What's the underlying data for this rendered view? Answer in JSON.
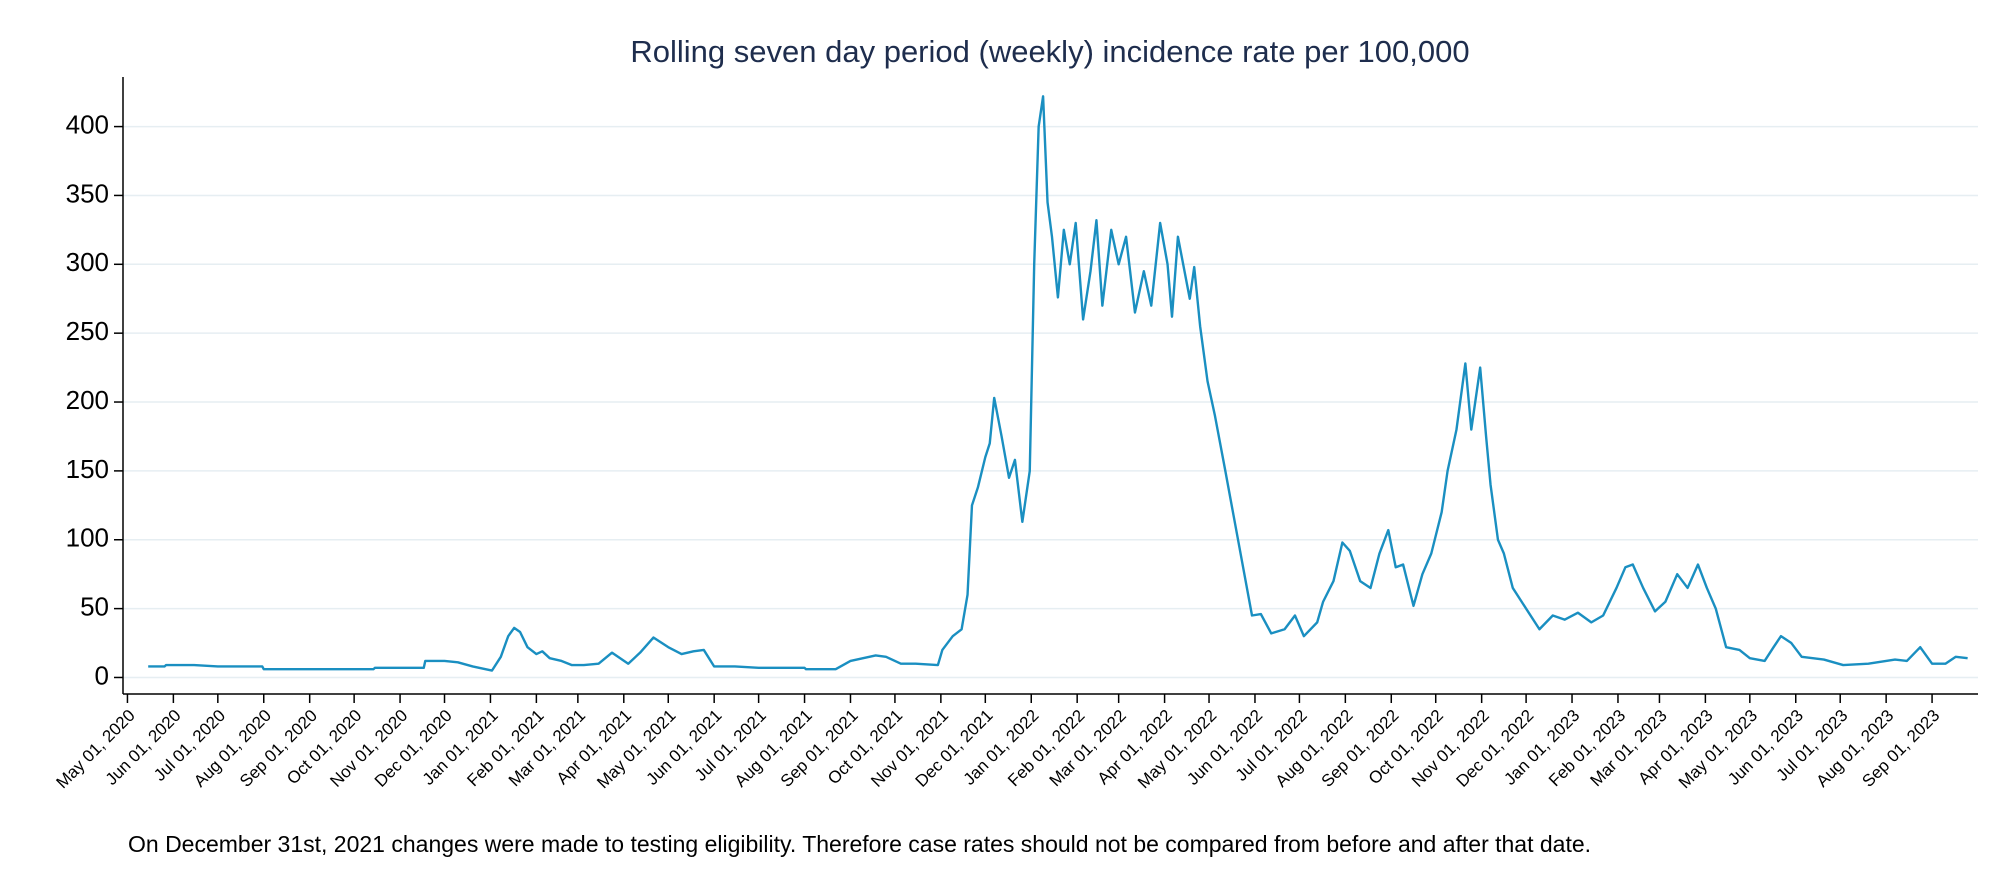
{
  "chart_data": {
    "type": "line",
    "title": "Rolling seven day period (weekly) incidence rate per 100,000",
    "annotation": "On December 31st, 2021 changes were made to testing eligibility. Therefore case rates should not be compared from before and after that date.",
    "color": "#1a8fc1",
    "grid": true,
    "xlim": [
      "2020-04-28",
      "2023-10-02"
    ],
    "ylim": [
      -12,
      436
    ],
    "yticks": [
      0,
      50,
      100,
      150,
      200,
      250,
      300,
      350,
      400
    ],
    "xticks": [
      {
        "value": "2020-05-01",
        "label": "May 01, 2020"
      },
      {
        "value": "2020-06-01",
        "label": "Jun 01, 2020"
      },
      {
        "value": "2020-07-01",
        "label": "Jul 01, 2020"
      },
      {
        "value": "2020-08-01",
        "label": "Aug 01, 2020"
      },
      {
        "value": "2020-09-01",
        "label": "Sep 01, 2020"
      },
      {
        "value": "2020-10-01",
        "label": "Oct 01, 2020"
      },
      {
        "value": "2020-11-01",
        "label": "Nov 01, 2020"
      },
      {
        "value": "2020-12-01",
        "label": "Dec 01, 2020"
      },
      {
        "value": "2021-01-01",
        "label": "Jan 01, 2021"
      },
      {
        "value": "2021-02-01",
        "label": "Feb 01, 2021"
      },
      {
        "value": "2021-03-01",
        "label": "Mar 01, 2021"
      },
      {
        "value": "2021-04-01",
        "label": "Apr 01, 2021"
      },
      {
        "value": "2021-05-01",
        "label": "May 01, 2021"
      },
      {
        "value": "2021-06-01",
        "label": "Jun 01, 2021"
      },
      {
        "value": "2021-07-01",
        "label": "Jul 01, 2021"
      },
      {
        "value": "2021-08-01",
        "label": "Aug 01, 2021"
      },
      {
        "value": "2021-09-01",
        "label": "Sep 01, 2021"
      },
      {
        "value": "2021-10-01",
        "label": "Oct 01, 2021"
      },
      {
        "value": "2021-11-01",
        "label": "Nov 01, 2021"
      },
      {
        "value": "2021-12-01",
        "label": "Dec 01, 2021"
      },
      {
        "value": "2022-01-01",
        "label": "Jan 01, 2022"
      },
      {
        "value": "2022-02-01",
        "label": "Feb 01, 2022"
      },
      {
        "value": "2022-03-01",
        "label": "Mar 01, 2022"
      },
      {
        "value": "2022-04-01",
        "label": "Apr 01, 2022"
      },
      {
        "value": "2022-05-01",
        "label": "May 01, 2022"
      },
      {
        "value": "2022-06-01",
        "label": "Jun 01, 2022"
      },
      {
        "value": "2022-07-01",
        "label": "Jul 01, 2022"
      },
      {
        "value": "2022-08-01",
        "label": "Aug 01, 2022"
      },
      {
        "value": "2022-09-01",
        "label": "Sep 01, 2022"
      },
      {
        "value": "2022-10-01",
        "label": "Oct 01, 2022"
      },
      {
        "value": "2022-11-01",
        "label": "Nov 01, 2022"
      },
      {
        "value": "2022-12-01",
        "label": "Dec 01, 2022"
      },
      {
        "value": "2023-01-01",
        "label": "Jan 01, 2023"
      },
      {
        "value": "2023-02-01",
        "label": "Feb 01, 2023"
      },
      {
        "value": "2023-03-01",
        "label": "Mar 01, 2023"
      },
      {
        "value": "2023-04-01",
        "label": "Apr 01, 2023"
      },
      {
        "value": "2023-05-01",
        "label": "May 01, 2023"
      },
      {
        "value": "2023-06-01",
        "label": "Jun 01, 2023"
      },
      {
        "value": "2023-07-01",
        "label": "Jul 01, 2023"
      },
      {
        "value": "2023-08-01",
        "label": "Aug 01, 2023"
      },
      {
        "value": "2023-09-01",
        "label": "Sep 01, 2023"
      }
    ],
    "x": [
      "2020-05-15",
      "2020-05-26",
      "2020-05-27",
      "2020-06-15",
      "2020-07-01",
      "2020-07-31",
      "2020-08-01",
      "2020-09-15",
      "2020-10-14",
      "2020-10-15",
      "2020-11-17",
      "2020-11-18",
      "2020-12-01",
      "2020-12-10",
      "2020-12-20",
      "2021-01-02",
      "2021-01-08",
      "2021-01-13",
      "2021-01-17",
      "2021-01-21",
      "2021-01-26",
      "2021-02-01",
      "2021-02-05",
      "2021-02-10",
      "2021-02-18",
      "2021-02-25",
      "2021-03-05",
      "2021-03-15",
      "2021-03-24",
      "2021-04-04",
      "2021-04-12",
      "2021-04-21",
      "2021-05-01",
      "2021-05-10",
      "2021-05-18",
      "2021-05-25",
      "2021-06-01",
      "2021-06-15",
      "2021-07-01",
      "2021-08-01",
      "2021-08-02",
      "2021-08-22",
      "2021-09-01",
      "2021-09-18",
      "2021-09-25",
      "2021-10-05",
      "2021-10-15",
      "2021-10-30",
      "2021-11-02",
      "2021-11-09",
      "2021-11-15",
      "2021-11-19",
      "2021-11-22",
      "2021-11-26",
      "2021-12-01",
      "2021-12-04",
      "2021-12-07",
      "2021-12-12",
      "2021-12-17",
      "2021-12-21",
      "2021-12-26",
      "2021-12-31",
      "2022-01-03",
      "2022-01-06",
      "2022-01-09",
      "2022-01-12",
      "2022-01-15",
      "2022-01-19",
      "2022-01-23",
      "2022-01-27",
      "2022-01-31",
      "2022-02-05",
      "2022-02-10",
      "2022-02-14",
      "2022-02-18",
      "2022-02-24",
      "2022-03-01",
      "2022-03-06",
      "2022-03-12",
      "2022-03-18",
      "2022-03-23",
      "2022-03-29",
      "2022-04-03",
      "2022-04-06",
      "2022-04-10",
      "2022-04-18",
      "2022-04-21",
      "2022-04-25",
      "2022-04-30",
      "2022-05-05",
      "2022-05-12",
      "2022-05-18",
      "2022-05-24",
      "2022-05-30",
      "2022-06-05",
      "2022-06-12",
      "2022-06-21",
      "2022-06-28",
      "2022-07-04",
      "2022-07-13",
      "2022-07-17",
      "2022-07-24",
      "2022-07-30",
      "2022-08-04",
      "2022-08-11",
      "2022-08-18",
      "2022-08-24",
      "2022-08-30",
      "2022-09-04",
      "2022-09-09",
      "2022-09-16",
      "2022-09-22",
      "2022-09-28",
      "2022-10-05",
      "2022-10-09",
      "2022-10-15",
      "2022-10-21",
      "2022-10-25",
      "2022-10-31",
      "2022-11-04",
      "2022-11-07",
      "2022-11-12",
      "2022-11-16",
      "2022-11-22",
      "2022-11-28",
      "2022-12-10",
      "2022-12-19",
      "2022-12-27",
      "2023-01-05",
      "2023-01-14",
      "2023-01-22",
      "2023-01-31",
      "2023-02-06",
      "2023-02-11",
      "2023-02-18",
      "2023-02-26",
      "2023-03-05",
      "2023-03-13",
      "2023-03-20",
      "2023-03-27",
      "2023-04-02",
      "2023-04-08",
      "2023-04-15",
      "2023-04-24",
      "2023-05-01",
      "2023-05-11",
      "2023-05-17",
      "2023-05-22",
      "2023-05-29",
      "2023-06-05",
      "2023-06-20",
      "2023-07-03",
      "2023-07-20",
      "2023-08-07",
      "2023-08-15",
      "2023-08-24",
      "2023-09-01",
      "2023-09-10",
      "2023-09-17",
      "2023-09-25"
    ],
    "values": [
      8,
      8,
      9,
      9,
      8,
      8,
      6,
      6,
      6,
      7,
      7,
      12,
      12,
      11,
      8,
      5,
      15,
      30,
      36,
      33,
      22,
      17,
      19,
      14,
      12,
      9,
      9,
      10,
      18,
      10,
      18,
      29,
      22,
      17,
      19,
      20,
      8,
      8,
      7,
      7,
      6,
      6,
      12,
      16,
      15,
      10,
      10,
      9,
      20,
      30,
      35,
      60,
      125,
      138,
      160,
      170,
      203,
      175,
      145,
      158,
      113,
      150,
      300,
      400,
      422,
      345,
      320,
      276,
      325,
      300,
      330,
      260,
      295,
      332,
      270,
      325,
      300,
      320,
      265,
      295,
      270,
      330,
      300,
      262,
      320,
      275,
      298,
      255,
      215,
      190,
      150,
      115,
      80,
      45,
      46,
      32,
      35,
      45,
      30,
      40,
      55,
      70,
      98,
      92,
      70,
      65,
      90,
      107,
      80,
      82,
      52,
      75,
      90,
      120,
      150,
      180,
      228,
      180,
      225,
      175,
      140,
      100,
      90,
      65,
      55,
      35,
      45,
      42,
      47,
      40,
      45,
      65,
      80,
      82,
      65,
      48,
      55,
      75,
      65,
      82,
      65,
      50,
      22,
      20,
      14,
      12,
      22,
      30,
      25,
      15,
      13,
      9,
      10,
      13,
      12,
      22,
      10,
      10,
      15,
      14
    ]
  }
}
